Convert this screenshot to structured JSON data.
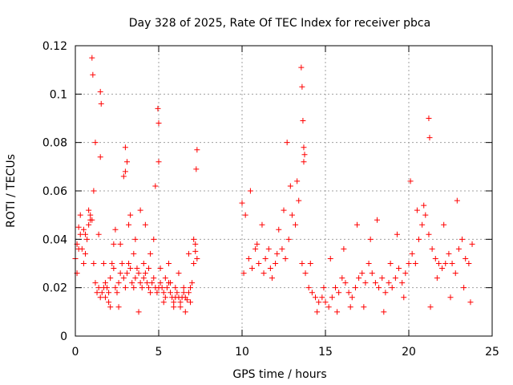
{
  "chart_data": {
    "type": "scatter",
    "title": "Day 328 of 2025, Rate Of TEC Index for receiver pbca",
    "xlabel": "GPS time / hours",
    "ylabel": "ROTI / TECUs",
    "xlim": [
      0,
      25
    ],
    "ylim": [
      0,
      0.12
    ],
    "xticks": [
      "0",
      "5",
      "10",
      "15",
      "20",
      "25"
    ],
    "yticks": [
      "0",
      "0.02",
      "0.04",
      "0.06",
      "0.08",
      "0.1",
      "0.12"
    ],
    "grid": true,
    "marker": "plus",
    "marker_color": "#ff0000",
    "series": [
      {
        "values_x": [
          0.0,
          0.1,
          0.2,
          0.3,
          0.4,
          0.5,
          0.6,
          0.7,
          0.8,
          0.9,
          1.0,
          1.1,
          1.2,
          1.3,
          1.4,
          1.5,
          1.6,
          1.7,
          1.8,
          1.9,
          2.0,
          2.1,
          2.2,
          2.3,
          2.4,
          2.5,
          2.6,
          2.7,
          2.8,
          2.9,
          3.0,
          3.1,
          3.2,
          3.3,
          3.4,
          3.5,
          3.6,
          3.7,
          3.8,
          3.9,
          4.0,
          4.1,
          4.2,
          4.3,
          4.4,
          4.5,
          4.6,
          4.7,
          4.8,
          4.9,
          5.0,
          5.1,
          5.2,
          5.3,
          5.4,
          5.5,
          5.6,
          5.7,
          5.8,
          5.9,
          6.0,
          6.1,
          6.2,
          6.3,
          6.4,
          6.5,
          6.6,
          6.7,
          6.8,
          6.9,
          7.0,
          7.1,
          7.2,
          7.3,
          1.0,
          1.05,
          1.5,
          1.55,
          3.0,
          3.1,
          4.95,
          5.0,
          7.3,
          7.25,
          0.1,
          0.3,
          0.6,
          0.9,
          1.2,
          1.5,
          1.8,
          2.1,
          2.4,
          2.7,
          3.0,
          3.3,
          3.6,
          3.9,
          4.2,
          4.5,
          4.8,
          5.1,
          5.4,
          5.7,
          6.0,
          6.3,
          6.6,
          6.9,
          7.2,
          0.2,
          0.5,
          0.8,
          1.1,
          1.4,
          1.7,
          2.0,
          2.3,
          2.6,
          2.9,
          3.2,
          3.5,
          3.8,
          4.1,
          4.4,
          4.7,
          5.0,
          5.3,
          5.6,
          5.9,
          6.2,
          6.5,
          6.8,
          7.1,
          10.0,
          10.2,
          10.4,
          10.6,
          10.8,
          11.0,
          11.2,
          11.4,
          11.6,
          11.8,
          12.0,
          12.2,
          12.4,
          12.6,
          12.8,
          13.0,
          13.2,
          13.4,
          13.6,
          13.8,
          14.0,
          14.2,
          14.4,
          14.6,
          14.8,
          15.0,
          15.2,
          15.4,
          15.6,
          15.8,
          16.0,
          16.2,
          16.4,
          16.6,
          16.8,
          17.0,
          17.2,
          17.4,
          17.6,
          17.8,
          18.0,
          18.2,
          18.4,
          18.6,
          18.8,
          19.0,
          19.2,
          19.4,
          19.6,
          19.8,
          20.0,
          20.2,
          20.4,
          20.6,
          20.8,
          21.0,
          21.2,
          21.4,
          21.6,
          21.8,
          22.0,
          22.2,
          22.4,
          22.6,
          22.8,
          23.0,
          23.2,
          23.4,
          23.6,
          23.8,
          13.55,
          13.6,
          13.65,
          13.7,
          13.75,
          12.7,
          21.2,
          21.25,
          10.1,
          10.5,
          10.9,
          11.3,
          11.7,
          12.1,
          12.5,
          12.9,
          13.3,
          13.7,
          14.1,
          14.5,
          14.9,
          15.3,
          15.7,
          16.1,
          16.5,
          16.9,
          17.3,
          17.7,
          18.1,
          18.5,
          18.9,
          19.3,
          19.7,
          20.1,
          20.5,
          20.9,
          21.3,
          21.7,
          22.1,
          22.5,
          22.9,
          23.3,
          23.7
        ],
        "values_y": [
          0.032,
          0.038,
          0.045,
          0.042,
          0.036,
          0.03,
          0.034,
          0.04,
          0.046,
          0.05,
          0.048,
          0.03,
          0.022,
          0.018,
          0.02,
          0.016,
          0.018,
          0.02,
          0.022,
          0.02,
          0.018,
          0.024,
          0.03,
          0.028,
          0.02,
          0.018,
          0.022,
          0.026,
          0.03,
          0.024,
          0.02,
          0.026,
          0.03,
          0.028,
          0.022,
          0.02,
          0.024,
          0.028,
          0.026,
          0.022,
          0.02,
          0.024,
          0.026,
          0.022,
          0.02,
          0.018,
          0.022,
          0.024,
          0.02,
          0.018,
          0.02,
          0.022,
          0.02,
          0.018,
          0.016,
          0.02,
          0.022,
          0.018,
          0.016,
          0.014,
          0.016,
          0.018,
          0.016,
          0.014,
          0.016,
          0.018,
          0.016,
          0.015,
          0.018,
          0.02,
          0.022,
          0.03,
          0.035,
          0.032,
          0.115,
          0.108,
          0.101,
          0.096,
          0.078,
          0.072,
          0.094,
          0.088,
          0.077,
          0.069,
          0.026,
          0.05,
          0.042,
          0.048,
          0.08,
          0.074,
          0.016,
          0.012,
          0.044,
          0.038,
          0.068,
          0.05,
          0.04,
          0.052,
          0.046,
          0.034,
          0.062,
          0.028,
          0.024,
          0.022,
          0.02,
          0.012,
          0.01,
          0.014,
          0.038,
          0.036,
          0.044,
          0.052,
          0.06,
          0.042,
          0.03,
          0.014,
          0.038,
          0.012,
          0.066,
          0.046,
          0.034,
          0.01,
          0.03,
          0.028,
          0.04,
          0.072,
          0.014,
          0.03,
          0.012,
          0.026,
          0.02,
          0.034,
          0.04,
          0.055,
          0.05,
          0.032,
          0.028,
          0.036,
          0.03,
          0.046,
          0.032,
          0.036,
          0.024,
          0.03,
          0.044,
          0.036,
          0.032,
          0.04,
          0.05,
          0.046,
          0.056,
          0.03,
          0.026,
          0.02,
          0.018,
          0.016,
          0.014,
          0.016,
          0.014,
          0.012,
          0.016,
          0.02,
          0.018,
          0.024,
          0.022,
          0.018,
          0.016,
          0.02,
          0.024,
          0.026,
          0.022,
          0.03,
          0.026,
          0.022,
          0.02,
          0.024,
          0.018,
          0.022,
          0.02,
          0.024,
          0.028,
          0.022,
          0.026,
          0.03,
          0.034,
          0.03,
          0.04,
          0.046,
          0.05,
          0.042,
          0.036,
          0.032,
          0.03,
          0.028,
          0.03,
          0.034,
          0.03,
          0.026,
          0.036,
          0.04,
          0.032,
          0.03,
          0.038,
          0.111,
          0.103,
          0.089,
          0.078,
          0.075,
          0.08,
          0.09,
          0.082,
          0.026,
          0.06,
          0.038,
          0.026,
          0.028,
          0.034,
          0.052,
          0.062,
          0.064,
          0.072,
          0.03,
          0.01,
          0.02,
          0.032,
          0.01,
          0.036,
          0.012,
          0.046,
          0.012,
          0.04,
          0.048,
          0.01,
          0.03,
          0.042,
          0.016,
          0.064,
          0.052,
          0.054,
          0.012,
          0.024,
          0.046,
          0.016,
          0.056,
          0.02,
          0.014
        ]
      }
    ]
  }
}
